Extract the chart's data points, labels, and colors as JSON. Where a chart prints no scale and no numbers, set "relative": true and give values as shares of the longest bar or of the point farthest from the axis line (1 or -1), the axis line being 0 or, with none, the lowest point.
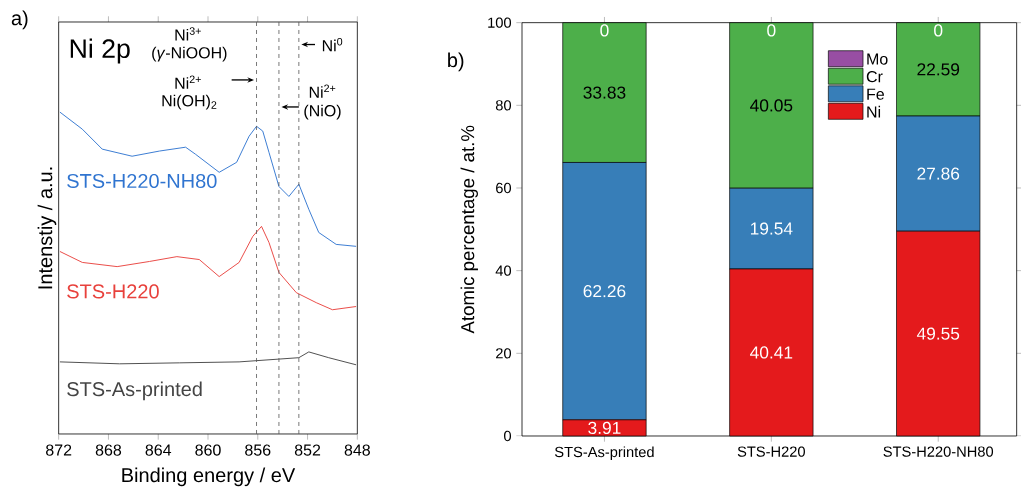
{
  "chart_data": [
    {
      "type": "line",
      "relative": true,
      "xlabel": "Binding energy / eV",
      "ylabel": "Intenstiy / a.u.",
      "xlim": [
        872,
        848
      ],
      "xticks": [
        872,
        868,
        864,
        860,
        856,
        852,
        848
      ],
      "ref_lines": [
        {
          "axis": "x",
          "value": 856.1,
          "color": "#555555",
          "line_style": "dashed"
        },
        {
          "axis": "x",
          "value": 854.3,
          "color": "#555555",
          "line_style": "dashed"
        },
        {
          "axis": "x",
          "value": 852.7,
          "color": "#555555",
          "line_style": "dashed"
        }
      ],
      "annotations": [
        "a)",
        "Ni 2p",
        "Ni$^{3+}$",
        "(*γ*-NiOOH)",
        "Ni$^{2+}$",
        "Ni(OH)$_{2}$",
        "Ni$^{2+}$",
        "(NiO)",
        "Ni$^{0}$"
      ],
      "series": [
        {
          "name": "STS-As-printed",
          "color": "#444444",
          "x": [
            871.9,
            867.1,
            862.3,
            857.5,
            852.7,
            851.9,
            850.3,
            848.1
          ],
          "values": [
            0.224,
            0.218,
            0.221,
            0.224,
            0.237,
            0.255,
            0.237,
            0.215
          ]
        },
        {
          "name": "STS-H220",
          "color": "#e8413c",
          "x": [
            871.9,
            870.1,
            867.3,
            864.7,
            862.5,
            860.7,
            859.1,
            857.5,
            856.4,
            855.7,
            855.1,
            854.3,
            852.9,
            851.3,
            850.0,
            848.1
          ],
          "values": [
            0.567,
            0.533,
            0.52,
            0.536,
            0.551,
            0.542,
            0.489,
            0.533,
            0.614,
            0.645,
            0.595,
            0.502,
            0.439,
            0.408,
            0.386,
            0.396
          ]
        },
        {
          "name": "STS-H220-NH80",
          "color": "#2f74d0",
          "x": [
            871.9,
            870.1,
            868.5,
            866.1,
            863.9,
            861.8,
            861.0,
            859.1,
            857.7,
            856.7,
            856.1,
            855.6,
            855.1,
            854.3,
            853.5,
            852.7,
            851.9,
            851.1,
            849.7,
            848.1
          ],
          "values": [
            1.0,
            0.947,
            0.885,
            0.863,
            0.879,
            0.891,
            0.869,
            0.813,
            0.844,
            0.925,
            0.956,
            0.941,
            0.875,
            0.769,
            0.738,
            0.776,
            0.698,
            0.626,
            0.589,
            0.583
          ]
        }
      ]
    },
    {
      "type": "bar",
      "stacked": true,
      "ylabel": "Atomic percentage / at.%",
      "categories": [
        "STS-As-printed",
        "STS-H220",
        "STS-H220-NH80"
      ],
      "ylim": [
        0,
        100
      ],
      "yticks": [
        0,
        20,
        40,
        60,
        80,
        100
      ],
      "legend": "top right",
      "data_labels": true,
      "annotations": [
        "b)"
      ],
      "series": [
        {
          "name": "Ni",
          "color": "#e41a1c",
          "values": [
            3.91,
            40.41,
            49.55
          ]
        },
        {
          "name": "Fe",
          "color": "#377eb8",
          "values": [
            62.26,
            19.54,
            27.86
          ]
        },
        {
          "name": "Cr",
          "color": "#4daf4a",
          "values": [
            33.83,
            40.05,
            22.59
          ]
        },
        {
          "name": "Mo",
          "color": "#984ea3",
          "values": [
            0,
            0,
            0
          ]
        }
      ]
    }
  ]
}
